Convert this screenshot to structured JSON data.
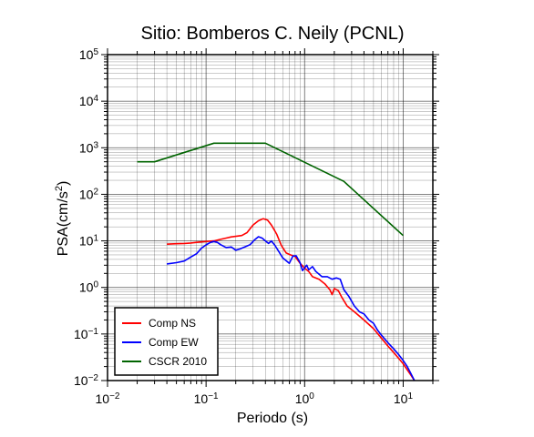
{
  "chart_data": {
    "type": "line",
    "title": "Sitio: Bomberos C. Neily (PCNL)",
    "xlabel": "Periodo (s)",
    "ylabel": {
      "base": "PSA(cm/s",
      "sup": "2",
      "close": ")"
    },
    "x_scale": "log",
    "y_scale": "log",
    "xlim": [
      0.01,
      20
    ],
    "ylim": [
      0.01,
      100000
    ],
    "grid": true,
    "legend_position": "bottom-left",
    "x_ticks": [
      {
        "value": 0.01,
        "base": "10",
        "exp": "−2"
      },
      {
        "value": 0.1,
        "base": "10",
        "exp": "−1"
      },
      {
        "value": 1,
        "base": "10",
        "exp": "0"
      },
      {
        "value": 10,
        "base": "10",
        "exp": "1"
      }
    ],
    "y_ticks": [
      {
        "value": 0.01,
        "base": "10",
        "exp": "−2"
      },
      {
        "value": 0.1,
        "base": "10",
        "exp": "−1"
      },
      {
        "value": 1,
        "base": "10",
        "exp": "0"
      },
      {
        "value": 10,
        "base": "10",
        "exp": "1"
      },
      {
        "value": 100,
        "base": "10",
        "exp": "2"
      },
      {
        "value": 1000,
        "base": "10",
        "exp": "3"
      },
      {
        "value": 10000,
        "base": "10",
        "exp": "4"
      },
      {
        "value": 100000,
        "base": "10",
        "exp": "5"
      }
    ],
    "series": [
      {
        "name": "Comp NS",
        "color": "#ff0000",
        "points": [
          [
            0.04,
            8.5
          ],
          [
            0.05,
            8.7
          ],
          [
            0.06,
            8.8
          ],
          [
            0.07,
            9.0
          ],
          [
            0.08,
            9.3
          ],
          [
            0.1,
            9.7
          ],
          [
            0.12,
            10.0
          ],
          [
            0.14,
            10.8
          ],
          [
            0.16,
            11.5
          ],
          [
            0.18,
            12.2
          ],
          [
            0.2,
            12.5
          ],
          [
            0.23,
            13.0
          ],
          [
            0.26,
            15.0
          ],
          [
            0.3,
            22.0
          ],
          [
            0.34,
            27.0
          ],
          [
            0.38,
            30.0
          ],
          [
            0.42,
            28.0
          ],
          [
            0.46,
            22.0
          ],
          [
            0.52,
            14.0
          ],
          [
            0.58,
            8.0
          ],
          [
            0.65,
            5.5
          ],
          [
            0.72,
            5.0
          ],
          [
            0.8,
            4.6
          ],
          [
            0.9,
            3.3
          ],
          [
            1.0,
            2.6
          ],
          [
            1.1,
            2.2
          ],
          [
            1.2,
            1.7
          ],
          [
            1.4,
            1.5
          ],
          [
            1.6,
            1.2
          ],
          [
            1.8,
            0.9
          ],
          [
            1.9,
            0.7
          ],
          [
            2.0,
            0.95
          ],
          [
            2.2,
            0.85
          ],
          [
            2.4,
            0.6
          ],
          [
            2.7,
            0.4
          ],
          [
            3.2,
            0.3
          ],
          [
            4.0,
            0.2
          ],
          [
            5.0,
            0.13
          ],
          [
            6.0,
            0.082
          ],
          [
            7.0,
            0.055
          ],
          [
            8.0,
            0.04
          ],
          [
            9.0,
            0.03
          ],
          [
            10.0,
            0.023
          ],
          [
            11.0,
            0.017
          ],
          [
            12.0,
            0.013
          ],
          [
            13.0,
            0.01
          ]
        ]
      },
      {
        "name": "Comp EW",
        "color": "#0000ff",
        "points": [
          [
            0.04,
            3.2
          ],
          [
            0.05,
            3.4
          ],
          [
            0.06,
            3.7
          ],
          [
            0.07,
            4.5
          ],
          [
            0.08,
            5.3
          ],
          [
            0.09,
            7.0
          ],
          [
            0.1,
            8.2
          ],
          [
            0.11,
            9.2
          ],
          [
            0.12,
            9.7
          ],
          [
            0.13,
            9.3
          ],
          [
            0.14,
            8.3
          ],
          [
            0.16,
            7.2
          ],
          [
            0.18,
            7.4
          ],
          [
            0.2,
            6.3
          ],
          [
            0.22,
            6.7
          ],
          [
            0.25,
            7.5
          ],
          [
            0.28,
            8.3
          ],
          [
            0.31,
            10.5
          ],
          [
            0.34,
            12.3
          ],
          [
            0.37,
            11.5
          ],
          [
            0.4,
            10.0
          ],
          [
            0.43,
            8.8
          ],
          [
            0.46,
            10.0
          ],
          [
            0.5,
            8.0
          ],
          [
            0.55,
            5.8
          ],
          [
            0.6,
            4.3
          ],
          [
            0.7,
            3.3
          ],
          [
            0.76,
            4.7
          ],
          [
            0.82,
            4.8
          ],
          [
            0.9,
            3.4
          ],
          [
            0.95,
            2.3
          ],
          [
            1.05,
            3.0
          ],
          [
            1.1,
            2.4
          ],
          [
            1.2,
            2.8
          ],
          [
            1.3,
            2.2
          ],
          [
            1.5,
            1.7
          ],
          [
            1.7,
            1.7
          ],
          [
            1.9,
            1.5
          ],
          [
            2.1,
            1.6
          ],
          [
            2.3,
            1.5
          ],
          [
            2.5,
            0.9
          ],
          [
            2.8,
            0.65
          ],
          [
            3.2,
            0.4
          ],
          [
            3.6,
            0.3
          ],
          [
            4.0,
            0.27
          ],
          [
            4.5,
            0.2
          ],
          [
            5.0,
            0.17
          ],
          [
            5.5,
            0.12
          ],
          [
            6.0,
            0.095
          ],
          [
            7.0,
            0.065
          ],
          [
            8.0,
            0.048
          ],
          [
            9.0,
            0.036
          ],
          [
            10.0,
            0.027
          ],
          [
            11.0,
            0.02
          ],
          [
            12.0,
            0.014
          ],
          [
            13.0,
            0.01
          ]
        ]
      },
      {
        "name": "CSCR 2010",
        "color": "#006400",
        "points": [
          [
            0.02,
            500
          ],
          [
            0.03,
            500
          ],
          [
            0.12,
            1250
          ],
          [
            0.4,
            1250
          ],
          [
            2.5,
            190
          ],
          [
            10.0,
            13
          ]
        ]
      }
    ]
  }
}
